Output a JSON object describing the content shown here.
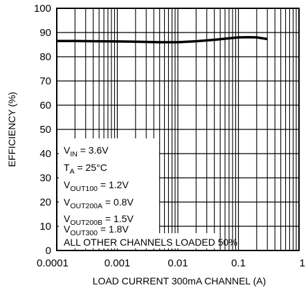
{
  "chart_data": {
    "type": "line",
    "xscale": "log",
    "xlim": [
      0.0001,
      1
    ],
    "ylim": [
      0,
      100
    ],
    "grid": true,
    "xlabel": "LOAD CURRENT 300mA CHANNEL (A)",
    "ylabel": "EFFICIENCY (%)",
    "x_ticks": [
      "0.0001",
      "0.001",
      "0.01",
      "0.1",
      "1"
    ],
    "y_ticks": [
      "0",
      "10",
      "20",
      "30",
      "40",
      "50",
      "60",
      "70",
      "80",
      "90",
      "100"
    ],
    "series": [
      {
        "x": [
          0.0001,
          0.0002,
          0.0005,
          0.001,
          0.002,
          0.005,
          0.01,
          0.02,
          0.04,
          0.07,
          0.1,
          0.15,
          0.2,
          0.3
        ],
        "y": [
          86.5,
          86.5,
          86.4,
          86.3,
          86.2,
          86.0,
          86.0,
          86.4,
          87.0,
          87.6,
          88.0,
          88.1,
          88.0,
          87.3
        ]
      }
    ],
    "conditions": [
      {
        "main": "V",
        "sub": "IN",
        "rest": " = 3.6V"
      },
      {
        "main": "T",
        "sub": "A",
        "rest": " = 25°C"
      },
      {
        "main": "V",
        "sub": "OUT100",
        "rest": " = 1.2V"
      },
      {
        "main": "V",
        "sub": "OUT200A",
        "rest": " = 0.8V"
      },
      {
        "main": "V",
        "sub": "OUT200B",
        "rest": " = 1.5V"
      },
      {
        "main": "V",
        "sub": "OUT300",
        "rest": " = 1.8V"
      }
    ],
    "footnote": "ALL OTHER CHANNELS LOADED 50%"
  }
}
